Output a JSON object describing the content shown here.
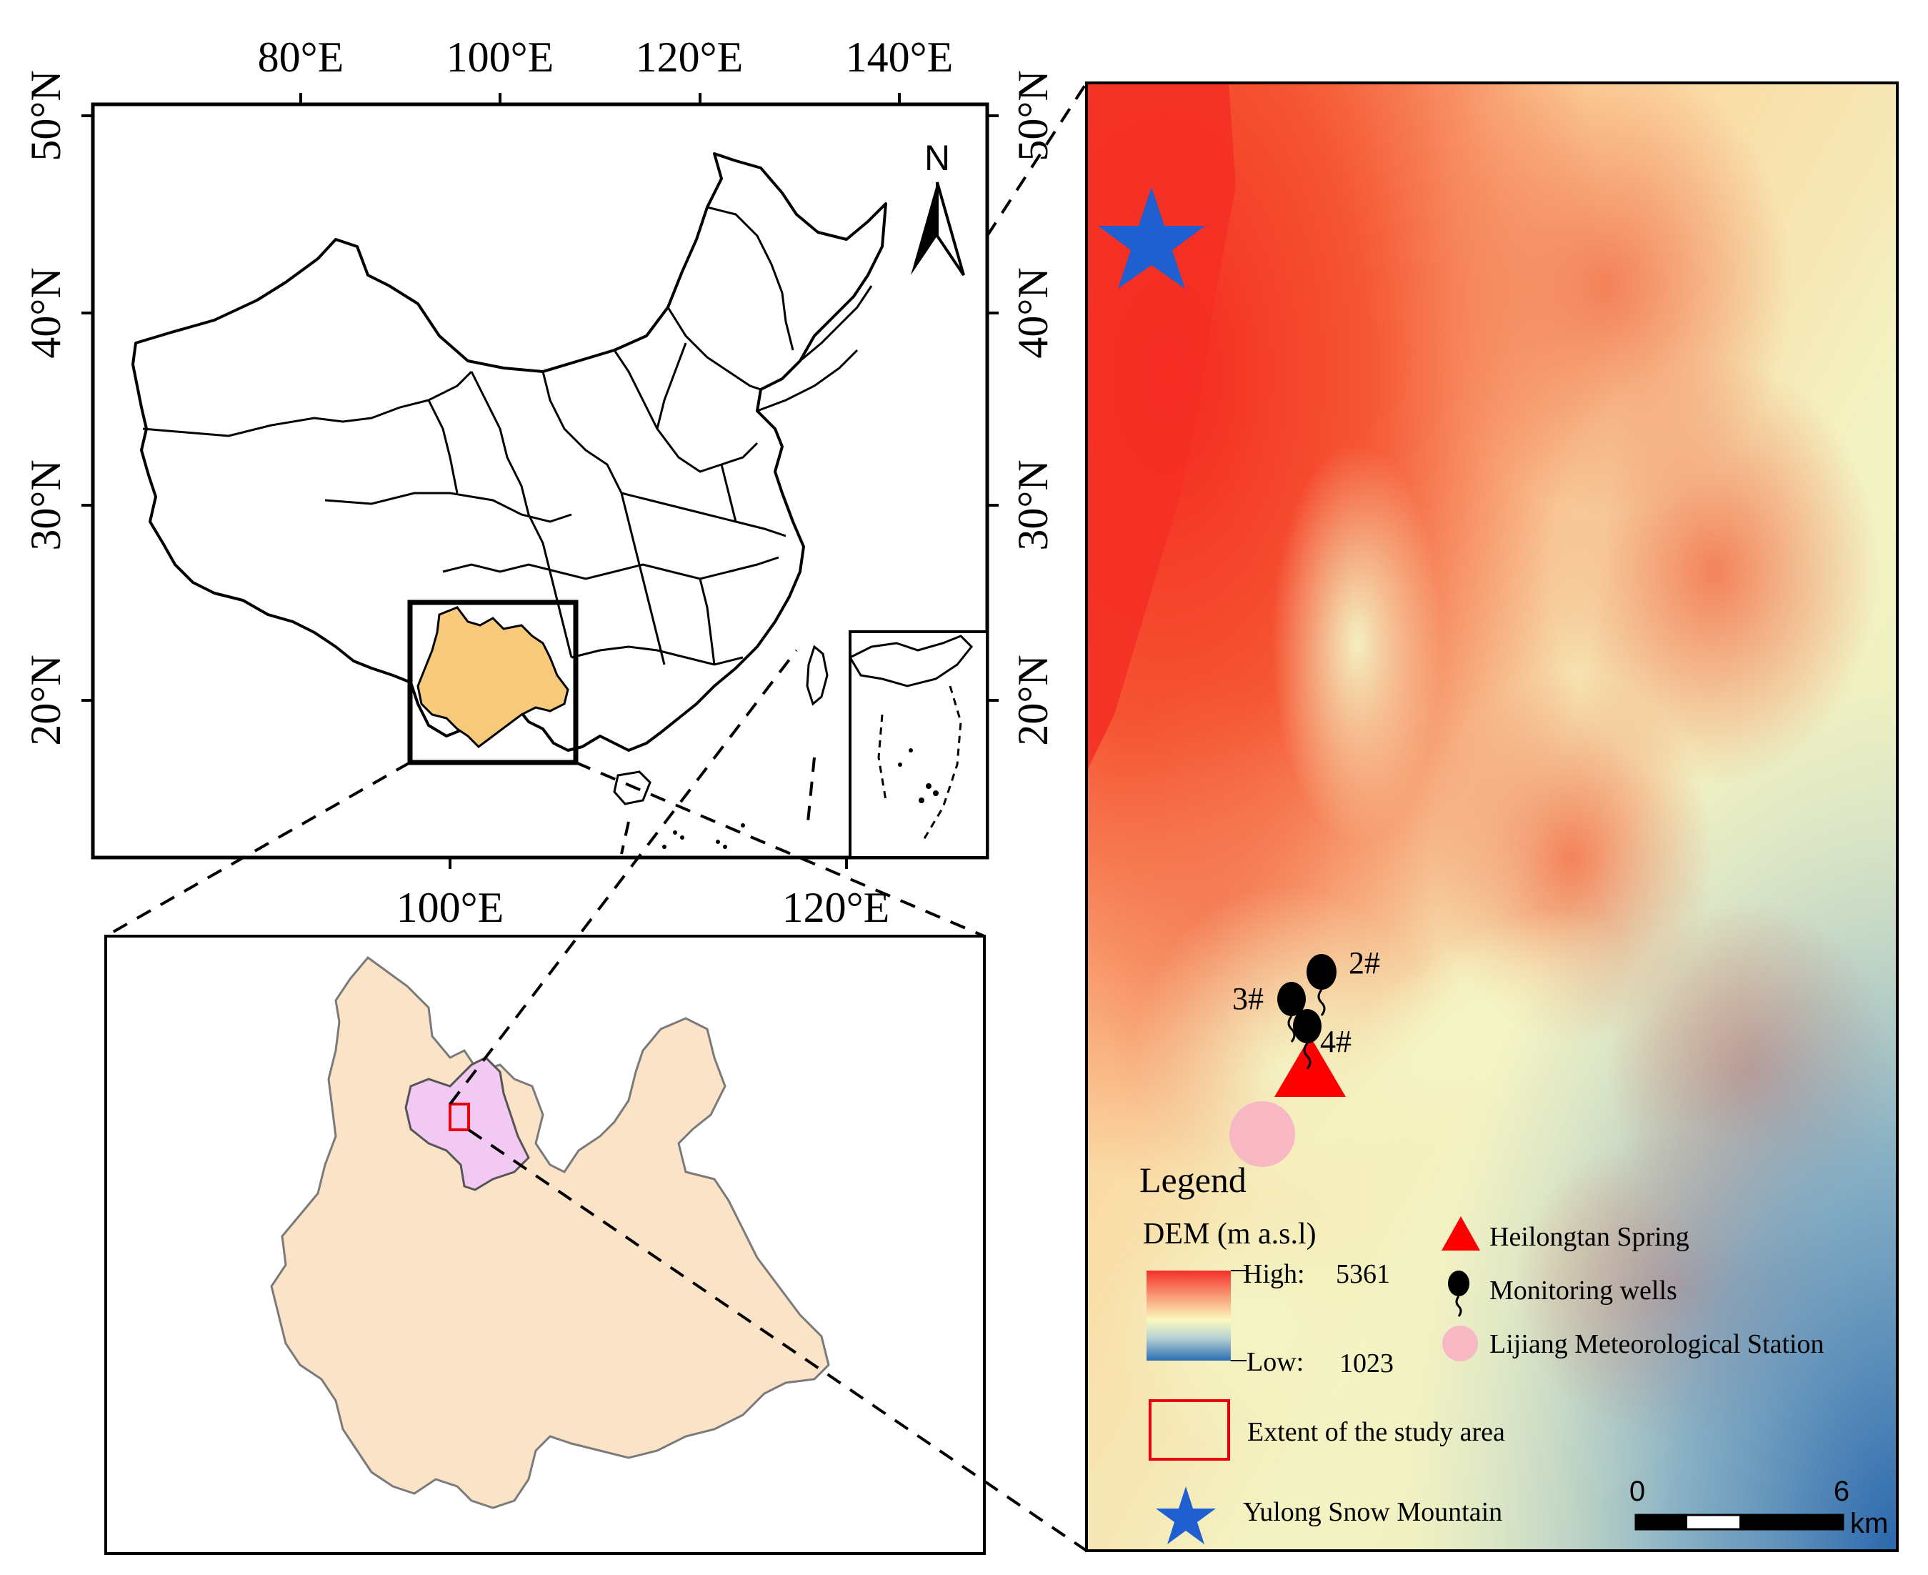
{
  "china_map": {
    "top_lon_labels": [
      "80°E",
      "100°E",
      "120°E",
      "140°E"
    ],
    "bottom_lon_labels": [
      "100°E",
      "120°E"
    ],
    "left_lat_labels": [
      "50°N",
      "40°N",
      "30°N",
      "20°N"
    ],
    "right_lat_labels": [
      "50°N",
      "40°N",
      "30°N",
      "20°N"
    ],
    "north_arrow_label": "N",
    "yunnan_fill": "#f7c97a",
    "outline_color": "#000000"
  },
  "yunnan_map": {
    "province_fill": "#fbe3c8",
    "lijiang_fill": "#f2c9f2",
    "study_box_color": "#e8000d"
  },
  "dem_map": {
    "wells": [
      {
        "label": "2#"
      },
      {
        "label": "3#"
      },
      {
        "label": "4#"
      }
    ],
    "scale_bar": {
      "start": "0",
      "end": "6",
      "unit": "km"
    },
    "colors": {
      "high": "#f5302a",
      "mid": "#fafac0",
      "low": "#2c6fb5",
      "star": "#1f5fcf",
      "spring": "#ff0000",
      "station": "#f7b8c4"
    }
  },
  "legend": {
    "title": "Legend",
    "dem_title": "DEM (m a.s.l)",
    "high_label": "High:",
    "high_value": "5361",
    "low_label": "Low:",
    "low_value": "1023",
    "spring": "Heilongtan Spring",
    "wells": "Monitoring wells",
    "station": "Lijiang Meteorological Station",
    "extent": "Extent of the study area",
    "mountain": "Yulong Snow Mountain"
  }
}
